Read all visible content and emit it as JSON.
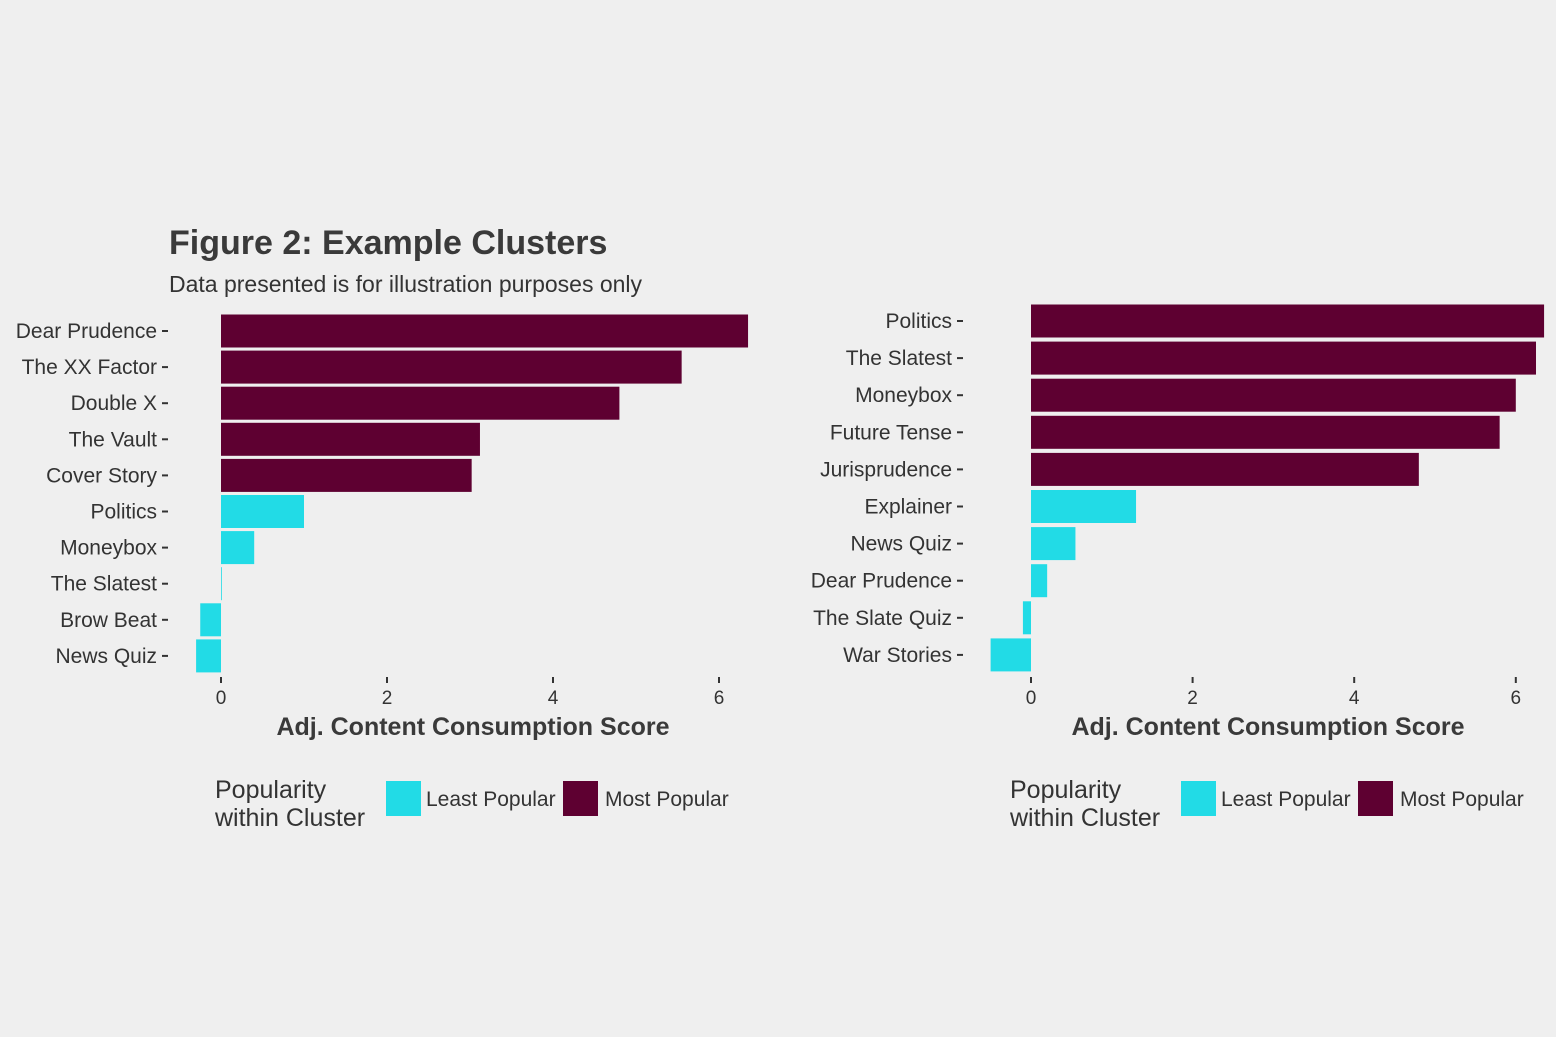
{
  "title": "Figure 2: Example Clusters",
  "subtitle": "Data presented is for illustration purposes only",
  "colors": {
    "least": "#22dbe6",
    "most": "#5e0031",
    "tick": "#333333",
    "background": "#efefef"
  },
  "chart_data": [
    {
      "type": "bar",
      "orientation": "horizontal",
      "categories": [
        "Dear Prudence",
        "The XX Factor",
        "Double X",
        "The Vault",
        "Cover Story",
        "Politics",
        "Moneybox",
        "The Slatest",
        "Brow Beat",
        "News Quiz"
      ],
      "values": [
        6.35,
        5.55,
        4.8,
        3.12,
        3.02,
        1.0,
        0.4,
        0.0,
        -0.25,
        -0.3
      ],
      "groups": [
        "Most Popular",
        "Most Popular",
        "Most Popular",
        "Most Popular",
        "Most Popular",
        "Least Popular",
        "Least Popular",
        "Least Popular",
        "Least Popular",
        "Least Popular"
      ],
      "xlim": [
        -0.3,
        6.35
      ],
      "xticks": [
        0,
        2,
        4,
        6
      ],
      "xlabel": "Adj. Content Consumption Score",
      "ylabel": "",
      "legend": {
        "title_line1": "Popularity",
        "title_line2": "within Cluster",
        "entries": [
          "Least Popular",
          "Most Popular"
        ],
        "position": "bottom"
      }
    },
    {
      "type": "bar",
      "orientation": "horizontal",
      "categories": [
        "Politics",
        "The Slatest",
        "Moneybox",
        "Future Tense",
        "Jurisprudence",
        "Explainer",
        "News Quiz",
        "Dear Prudence",
        "The Slate Quiz",
        "War Stories"
      ],
      "values": [
        6.35,
        6.25,
        6.0,
        5.8,
        4.8,
        1.3,
        0.55,
        0.2,
        -0.1,
        -0.5
      ],
      "groups": [
        "Most Popular",
        "Most Popular",
        "Most Popular",
        "Most Popular",
        "Most Popular",
        "Least Popular",
        "Least Popular",
        "Least Popular",
        "Least Popular",
        "Least Popular"
      ],
      "xlim": [
        -0.5,
        6.35
      ],
      "xticks": [
        0,
        2,
        4,
        6
      ],
      "xlabel": "Adj. Content Consumption Score",
      "ylabel": "",
      "legend": {
        "title_line1": "Popularity",
        "title_line2": "within Cluster",
        "entries": [
          "Least Popular",
          "Most Popular"
        ],
        "position": "bottom"
      }
    }
  ]
}
